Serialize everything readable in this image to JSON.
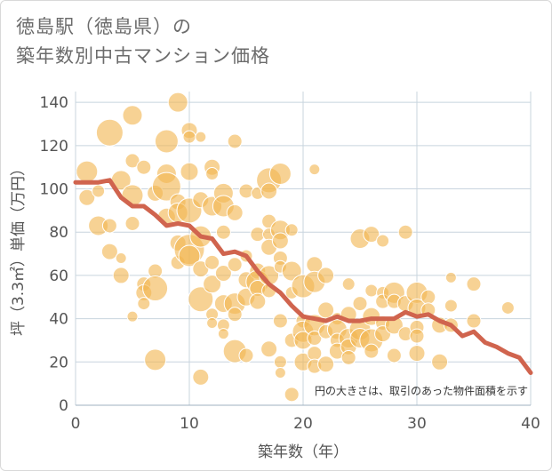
{
  "title_lines": [
    "徳島駅（徳島県）の",
    "築年数別中古マンション価格"
  ],
  "colors": {
    "bubble": "#f2b653",
    "line": "#d0644e",
    "grid": "#c8d4de",
    "plot_bg": "#ffffff"
  },
  "chart_data": {
    "type": "scatter",
    "xlabel": "築年数（年）",
    "ylabel": "坪（3.3㎡）単価（万円）",
    "xlim": [
      0,
      40
    ],
    "ylim": [
      0,
      145
    ],
    "xticks": [
      0,
      10,
      20,
      30,
      40
    ],
    "yticks": [
      0,
      20,
      40,
      60,
      80,
      100,
      120,
      140
    ],
    "grid": true,
    "annotation": "円の大きさは、取引のあった物件面積を示す",
    "points": [
      {
        "x": 1,
        "y": 108,
        "s": 12
      },
      {
        "x": 1,
        "y": 96,
        "s": 9
      },
      {
        "x": 2,
        "y": 83,
        "s": 11
      },
      {
        "x": 2,
        "y": 99,
        "s": 7
      },
      {
        "x": 3,
        "y": 126,
        "s": 15
      },
      {
        "x": 3,
        "y": 71,
        "s": 9
      },
      {
        "x": 3,
        "y": 83,
        "s": 8
      },
      {
        "x": 4,
        "y": 104,
        "s": 11
      },
      {
        "x": 4,
        "y": 60,
        "s": 9
      },
      {
        "x": 4,
        "y": 68,
        "s": 6
      },
      {
        "x": 5,
        "y": 134,
        "s": 11
      },
      {
        "x": 5,
        "y": 113,
        "s": 8
      },
      {
        "x": 5,
        "y": 97,
        "s": 12
      },
      {
        "x": 5,
        "y": 84,
        "s": 8
      },
      {
        "x": 5,
        "y": 41,
        "s": 6
      },
      {
        "x": 6,
        "y": 110,
        "s": 8
      },
      {
        "x": 6,
        "y": 56,
        "s": 8
      },
      {
        "x": 6,
        "y": 52,
        "s": 9
      },
      {
        "x": 6,
        "y": 47,
        "s": 7
      },
      {
        "x": 7,
        "y": 98,
        "s": 9
      },
      {
        "x": 7,
        "y": 62,
        "s": 8
      },
      {
        "x": 7,
        "y": 54,
        "s": 14
      },
      {
        "x": 7,
        "y": 21,
        "s": 12
      },
      {
        "x": 8,
        "y": 122,
        "s": 13
      },
      {
        "x": 8,
        "y": 107,
        "s": 11
      },
      {
        "x": 8,
        "y": 101,
        "s": 16
      },
      {
        "x": 8,
        "y": 87,
        "s": 10
      },
      {
        "x": 9,
        "y": 140,
        "s": 11
      },
      {
        "x": 9,
        "y": 94,
        "s": 9
      },
      {
        "x": 9,
        "y": 89,
        "s": 11
      },
      {
        "x": 9,
        "y": 75,
        "s": 9
      },
      {
        "x": 9,
        "y": 66,
        "s": 8
      },
      {
        "x": 10,
        "y": 127,
        "s": 9
      },
      {
        "x": 10,
        "y": 124,
        "s": 7
      },
      {
        "x": 10,
        "y": 108,
        "s": 10
      },
      {
        "x": 10,
        "y": 90,
        "s": 14
      },
      {
        "x": 10,
        "y": 72,
        "s": 17
      },
      {
        "x": 10,
        "y": 69,
        "s": 12
      },
      {
        "x": 11,
        "y": 124,
        "s": 6
      },
      {
        "x": 11,
        "y": 95,
        "s": 9
      },
      {
        "x": 11,
        "y": 78,
        "s": 12
      },
      {
        "x": 11,
        "y": 63,
        "s": 9
      },
      {
        "x": 11,
        "y": 49,
        "s": 14
      },
      {
        "x": 11,
        "y": 13,
        "s": 9
      },
      {
        "x": 12,
        "y": 110,
        "s": 9
      },
      {
        "x": 12,
        "y": 107,
        "s": 7
      },
      {
        "x": 12,
        "y": 92,
        "s": 11
      },
      {
        "x": 12,
        "y": 66,
        "s": 8
      },
      {
        "x": 12,
        "y": 56,
        "s": 10
      },
      {
        "x": 12,
        "y": 42,
        "s": 7
      },
      {
        "x": 12,
        "y": 38,
        "s": 6
      },
      {
        "x": 13,
        "y": 98,
        "s": 11
      },
      {
        "x": 13,
        "y": 92,
        "s": 12
      },
      {
        "x": 13,
        "y": 80,
        "s": 8
      },
      {
        "x": 13,
        "y": 61,
        "s": 9
      },
      {
        "x": 13,
        "y": 47,
        "s": 10
      },
      {
        "x": 13,
        "y": 37,
        "s": 7
      },
      {
        "x": 13,
        "y": 33,
        "s": 6
      },
      {
        "x": 14,
        "y": 122,
        "s": 8
      },
      {
        "x": 14,
        "y": 89,
        "s": 9
      },
      {
        "x": 14,
        "y": 65,
        "s": 8
      },
      {
        "x": 14,
        "y": 47,
        "s": 12
      },
      {
        "x": 14,
        "y": 42,
        "s": 8
      },
      {
        "x": 14,
        "y": 25,
        "s": 13
      },
      {
        "x": 15,
        "y": 99,
        "s": 8
      },
      {
        "x": 15,
        "y": 69,
        "s": 7
      },
      {
        "x": 15,
        "y": 58,
        "s": 9
      },
      {
        "x": 15,
        "y": 50,
        "s": 10
      },
      {
        "x": 15,
        "y": 23,
        "s": 8
      },
      {
        "x": 16,
        "y": 98,
        "s": 7
      },
      {
        "x": 16,
        "y": 79,
        "s": 8
      },
      {
        "x": 16,
        "y": 62,
        "s": 9
      },
      {
        "x": 16,
        "y": 57,
        "s": 13
      },
      {
        "x": 16,
        "y": 54,
        "s": 9
      },
      {
        "x": 16,
        "y": 48,
        "s": 9
      },
      {
        "x": 17,
        "y": 104,
        "s": 14
      },
      {
        "x": 17,
        "y": 99,
        "s": 9
      },
      {
        "x": 17,
        "y": 85,
        "s": 8
      },
      {
        "x": 17,
        "y": 79,
        "s": 7
      },
      {
        "x": 17,
        "y": 73,
        "s": 9
      },
      {
        "x": 17,
        "y": 60,
        "s": 11
      },
      {
        "x": 17,
        "y": 53,
        "s": 8
      },
      {
        "x": 17,
        "y": 26,
        "s": 9
      },
      {
        "x": 18,
        "y": 107,
        "s": 12
      },
      {
        "x": 18,
        "y": 81,
        "s": 11
      },
      {
        "x": 18,
        "y": 76,
        "s": 9
      },
      {
        "x": 18,
        "y": 68,
        "s": 8
      },
      {
        "x": 18,
        "y": 64,
        "s": 7
      },
      {
        "x": 18,
        "y": 39,
        "s": 8
      },
      {
        "x": 18,
        "y": 20,
        "s": 7
      },
      {
        "x": 18,
        "y": 15,
        "s": 6
      },
      {
        "x": 19,
        "y": 81,
        "s": 7
      },
      {
        "x": 19,
        "y": 62,
        "s": 11
      },
      {
        "x": 19,
        "y": 52,
        "s": 7
      },
      {
        "x": 19,
        "y": 30,
        "s": 8
      },
      {
        "x": 19,
        "y": 5,
        "s": 8
      },
      {
        "x": 20,
        "y": 55,
        "s": 13
      },
      {
        "x": 20,
        "y": 39,
        "s": 8
      },
      {
        "x": 20,
        "y": 34,
        "s": 12
      },
      {
        "x": 20,
        "y": 30,
        "s": 10
      },
      {
        "x": 20,
        "y": 20,
        "s": 10
      },
      {
        "x": 21,
        "y": 109,
        "s": 6
      },
      {
        "x": 21,
        "y": 65,
        "s": 9
      },
      {
        "x": 21,
        "y": 57,
        "s": 12
      },
      {
        "x": 21,
        "y": 37,
        "s": 12
      },
      {
        "x": 21,
        "y": 31,
        "s": 8
      },
      {
        "x": 21,
        "y": 24,
        "s": 8
      },
      {
        "x": 21,
        "y": 18,
        "s": 8
      },
      {
        "x": 22,
        "y": 60,
        "s": 9
      },
      {
        "x": 22,
        "y": 44,
        "s": 9
      },
      {
        "x": 22,
        "y": 34,
        "s": 8
      },
      {
        "x": 22,
        "y": 19,
        "s": 9
      },
      {
        "x": 23,
        "y": 40,
        "s": 7
      },
      {
        "x": 23,
        "y": 35,
        "s": 11
      },
      {
        "x": 23,
        "y": 30,
        "s": 8
      },
      {
        "x": 23,
        "y": 25,
        "s": 9
      },
      {
        "x": 24,
        "y": 56,
        "s": 7
      },
      {
        "x": 24,
        "y": 42,
        "s": 9
      },
      {
        "x": 24,
        "y": 31,
        "s": 11
      },
      {
        "x": 24,
        "y": 27,
        "s": 9
      },
      {
        "x": 24,
        "y": 22,
        "s": 8
      },
      {
        "x": 25,
        "y": 77,
        "s": 11
      },
      {
        "x": 25,
        "y": 47,
        "s": 8
      },
      {
        "x": 25,
        "y": 35,
        "s": 12
      },
      {
        "x": 25,
        "y": 31,
        "s": 11
      },
      {
        "x": 26,
        "y": 79,
        "s": 9
      },
      {
        "x": 26,
        "y": 53,
        "s": 7
      },
      {
        "x": 26,
        "y": 41,
        "s": 10
      },
      {
        "x": 26,
        "y": 30,
        "s": 13
      },
      {
        "x": 26,
        "y": 25,
        "s": 8
      },
      {
        "x": 27,
        "y": 76,
        "s": 7
      },
      {
        "x": 27,
        "y": 52,
        "s": 7
      },
      {
        "x": 27,
        "y": 48,
        "s": 8
      },
      {
        "x": 27,
        "y": 38,
        "s": 8
      },
      {
        "x": 27,
        "y": 33,
        "s": 9
      },
      {
        "x": 28,
        "y": 52,
        "s": 12
      },
      {
        "x": 28,
        "y": 48,
        "s": 8
      },
      {
        "x": 28,
        "y": 37,
        "s": 10
      },
      {
        "x": 28,
        "y": 23,
        "s": 8
      },
      {
        "x": 29,
        "y": 80,
        "s": 8
      },
      {
        "x": 29,
        "y": 47,
        "s": 9
      },
      {
        "x": 29,
        "y": 33,
        "s": 8
      },
      {
        "x": 30,
        "y": 52,
        "s": 12
      },
      {
        "x": 30,
        "y": 45,
        "s": 10
      },
      {
        "x": 30,
        "y": 36,
        "s": 8
      },
      {
        "x": 30,
        "y": 32,
        "s": 8
      },
      {
        "x": 30,
        "y": 24,
        "s": 9
      },
      {
        "x": 31,
        "y": 50,
        "s": 8
      },
      {
        "x": 31,
        "y": 44,
        "s": 8
      },
      {
        "x": 32,
        "y": 37,
        "s": 9
      },
      {
        "x": 32,
        "y": 20,
        "s": 9
      },
      {
        "x": 33,
        "y": 46,
        "s": 7
      },
      {
        "x": 33,
        "y": 37,
        "s": 8
      },
      {
        "x": 33,
        "y": 59,
        "s": 6
      },
      {
        "x": 35,
        "y": 56,
        "s": 8
      },
      {
        "x": 35,
        "y": 39,
        "s": 8
      },
      {
        "x": 38,
        "y": 45,
        "s": 7
      }
    ],
    "trend": {
      "x": [
        0,
        1,
        2,
        3,
        4,
        5,
        6,
        7,
        8,
        9,
        10,
        11,
        12,
        13,
        14,
        15,
        16,
        17,
        18,
        19,
        20,
        21,
        22,
        23,
        24,
        25,
        26,
        27,
        28,
        29,
        30,
        31,
        32,
        33,
        34,
        35,
        36,
        37,
        38,
        39,
        40
      ],
      "y": [
        103,
        103,
        103,
        104,
        96,
        92,
        92,
        88,
        83,
        84,
        83,
        78,
        77,
        70,
        71,
        69,
        62,
        56,
        52,
        46,
        41,
        40,
        39,
        41,
        39,
        39,
        40,
        40,
        40,
        43,
        41,
        42,
        39,
        37,
        32,
        34,
        29,
        27,
        24,
        22,
        15
      ]
    }
  }
}
